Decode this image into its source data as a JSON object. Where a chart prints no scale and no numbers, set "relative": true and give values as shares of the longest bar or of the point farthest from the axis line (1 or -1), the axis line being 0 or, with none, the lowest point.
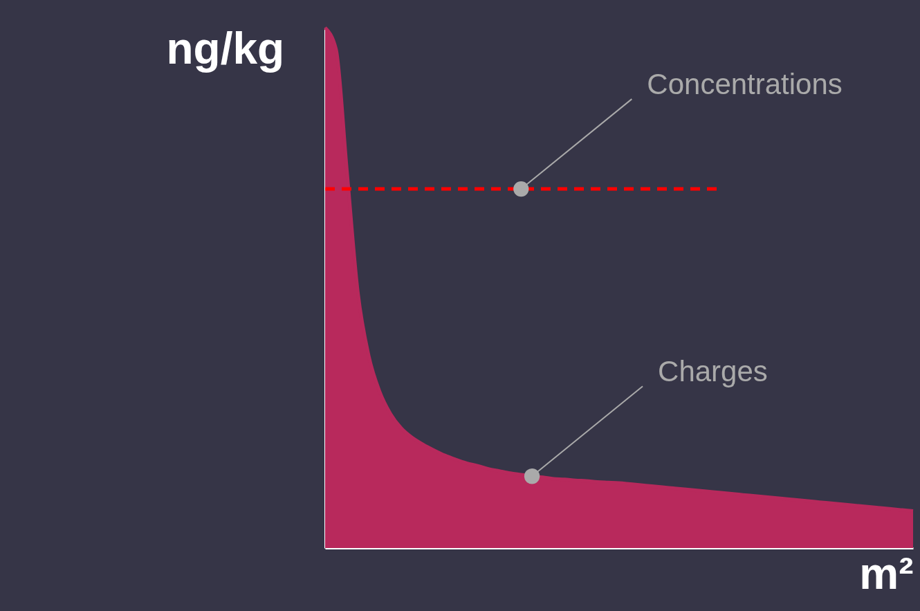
{
  "chart_data": {
    "type": "area",
    "relative": true,
    "xlabel": "m²",
    "ylabel": "ng/kg",
    "categories": [
      null,
      null,
      null,
      null,
      null,
      null,
      null,
      null,
      null,
      null,
      null,
      null,
      null,
      null,
      null,
      null,
      null,
      null,
      null,
      null,
      null,
      null,
      null,
      null,
      null,
      null,
      null,
      null,
      null,
      null,
      null,
      null,
      null,
      null,
      null,
      null,
      null,
      null,
      null,
      null,
      null,
      null,
      null,
      null,
      null,
      null,
      null,
      null,
      null,
      null,
      null,
      null,
      null,
      null,
      null
    ],
    "series": [
      {
        "name": "Charges",
        "color": "#b8295c",
        "values": [
          1.0,
          0.959,
          0.726,
          0.493,
          0.37,
          0.301,
          0.258,
          0.23,
          0.212,
          0.199,
          0.188,
          0.178,
          0.17,
          0.163,
          0.158,
          0.152,
          0.148,
          0.144,
          0.141,
          0.138,
          0.136,
          0.133,
          0.132,
          0.13,
          0.129,
          0.127,
          0.126,
          0.125,
          0.123,
          0.121,
          0.119,
          0.117,
          0.115,
          0.113,
          0.111,
          0.109,
          0.107,
          0.105,
          0.103,
          0.101,
          0.099,
          0.097,
          0.095,
          0.093,
          0.091,
          0.089,
          0.087,
          0.085,
          0.083,
          0.081,
          0.079,
          0.077,
          0.075,
          0.073,
          0.071
        ]
      },
      {
        "name": "Concentrations",
        "type": "line",
        "line_style": "dashed",
        "color": "#ff0000",
        "values": [
          0.69,
          0.69,
          0.69,
          0.69,
          0.69,
          0.69,
          0.69,
          0.69,
          0.69,
          0.69,
          0.69,
          0.69,
          0.69,
          0.69,
          0.69,
          0.69,
          0.69,
          0.69,
          0.69,
          0.69,
          0.69,
          0.69,
          0.69,
          0.69,
          0.69,
          0.69,
          0.69,
          0.69,
          0.69,
          0.69,
          0.69,
          0.69,
          0.69,
          0.69,
          0.69,
          0.69,
          0.69,
          null,
          null,
          null,
          null,
          null,
          null,
          null,
          null,
          null,
          null,
          null,
          null,
          null,
          null,
          null,
          null,
          null,
          null
        ]
      }
    ]
  }
}
